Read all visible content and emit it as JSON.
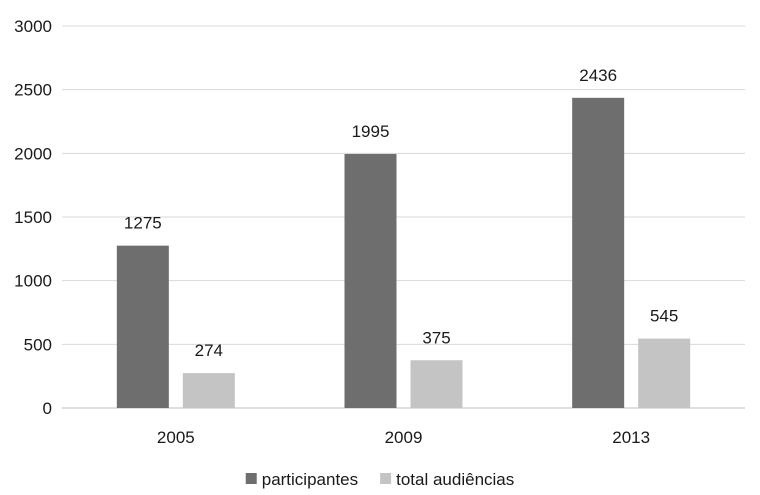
{
  "chart_data": {
    "type": "bar",
    "categories": [
      "2005",
      "2009",
      "2013"
    ],
    "series": [
      {
        "name": "participantes",
        "values": [
          1275,
          1995,
          2436
        ],
        "color": "#6e6e6e"
      },
      {
        "name": "total audiências",
        "values": [
          274,
          375,
          545
        ],
        "color": "#c4c4c4"
      }
    ],
    "ylim": [
      0,
      3000
    ],
    "yticks": [
      0,
      500,
      1000,
      1500,
      2000,
      2500,
      3000
    ],
    "grid": true,
    "legend": "bottom-center",
    "data_labels": true
  }
}
